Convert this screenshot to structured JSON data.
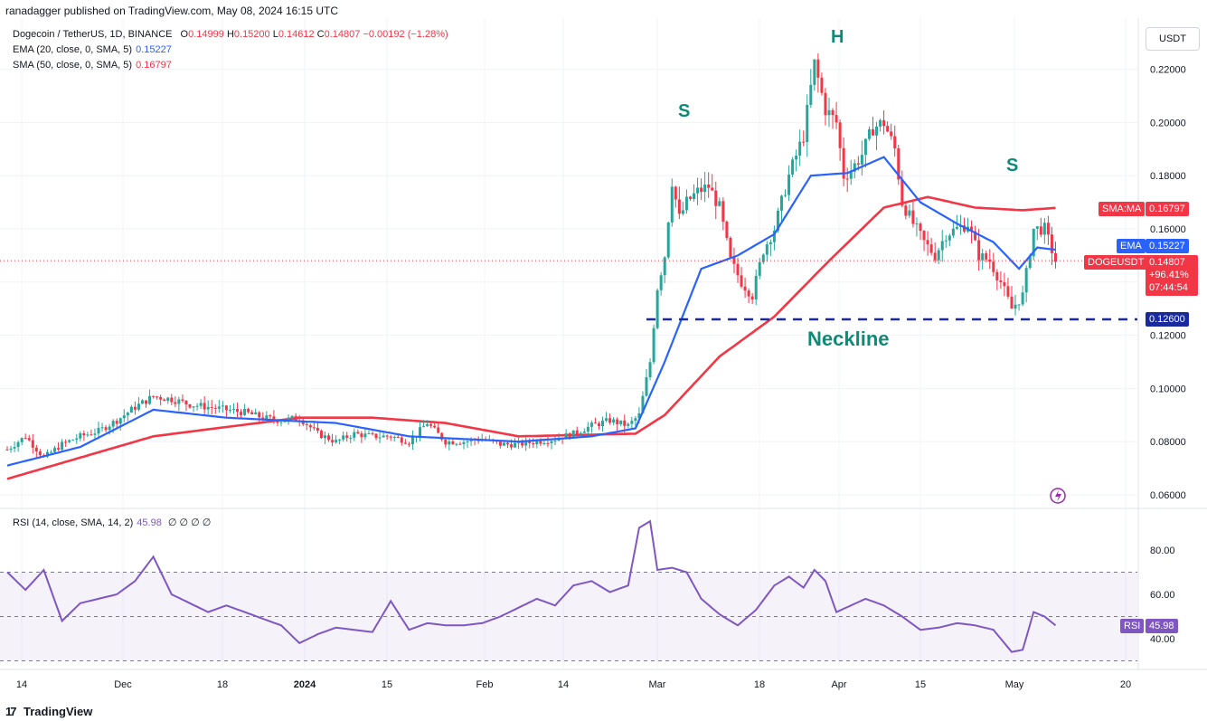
{
  "publisher_line": "ranadagger published on TradingView.com, May 08, 2024 16:15 UTC",
  "header": {
    "symbol": "Dogecoin / TetherUS, 1D, BINANCE",
    "o_key": "O",
    "o_val": "0.14999",
    "h_key": "H",
    "h_val": "0.15200",
    "l_key": "L",
    "l_val": "0.14612",
    "c_key": "C",
    "c_val": "0.14807",
    "change": "−0.00192 (−1.28%)",
    "ema_label": "EMA (20, close, 0, SMA, 5)",
    "ema_value": "0.15227",
    "sma_label": "SMA (50, close, 0, SMA, 5)",
    "sma_value": "0.16797",
    "rsi_label": "RSI (14, close, SMA, 14, 2)",
    "rsi_value": "45.98",
    "rsi_extra": "∅ ∅ ∅ ∅"
  },
  "currency_button": "USDT",
  "tags": {
    "sma": {
      "label": "SMA:MA",
      "value": "0.16797"
    },
    "ema": {
      "label": "EMA",
      "value": "0.15227"
    },
    "price": {
      "label": "DOGEUSDT",
      "value": "0.14807",
      "change": "+96.41%",
      "countdown": "07:44:54"
    },
    "neckline": "0.12600",
    "rsi": {
      "label": "RSI",
      "value": "45.98"
    }
  },
  "annotations": {
    "left_shoulder": "S",
    "head": "H",
    "right_shoulder": "S",
    "neckline": "Neckline"
  },
  "branding": "TradingView",
  "colors": {
    "up": "#26a69a",
    "down": "#f23645",
    "ema": "#2962ff",
    "sma": "#f23645",
    "rsi": "#7e57c2",
    "neckline": "#1a2a9c"
  },
  "chart_data": {
    "type": "candlestick",
    "title": "Dogecoin / TetherUS, 1D, BINANCE",
    "price_axis": {
      "ticks": [
        "0.22000",
        "0.20000",
        "0.18000",
        "0.16000",
        "0.14000",
        "0.12000",
        "0.10000",
        "0.08000",
        "0.06000"
      ],
      "range": [
        0.053,
        0.232
      ]
    },
    "time_axis": {
      "ticks": [
        "14",
        "Dec",
        "18",
        "2024",
        "15",
        "Feb",
        "14",
        "Mar",
        "18",
        "Apr",
        "15",
        "May",
        "20"
      ]
    },
    "rsi_axis": {
      "ticks": [
        "80.00",
        "60.00",
        "40.00"
      ],
      "range": [
        28,
        95
      ],
      "upper_band": 70,
      "middle": 50,
      "lower_band": 30
    },
    "neckline_level": 0.126,
    "close_anchors": [
      [
        0,
        0.077
      ],
      [
        5,
        0.082
      ],
      [
        10,
        0.074
      ],
      [
        15,
        0.079
      ],
      [
        20,
        0.082
      ],
      [
        25,
        0.084
      ],
      [
        30,
        0.088
      ],
      [
        35,
        0.093
      ],
      [
        40,
        0.097
      ],
      [
        45,
        0.096
      ],
      [
        50,
        0.094
      ],
      [
        55,
        0.093
      ],
      [
        60,
        0.092
      ],
      [
        65,
        0.091
      ],
      [
        70,
        0.089
      ],
      [
        75,
        0.088
      ],
      [
        80,
        0.089
      ],
      [
        85,
        0.083
      ],
      [
        90,
        0.08
      ],
      [
        95,
        0.083
      ],
      [
        100,
        0.082
      ],
      [
        105,
        0.082
      ],
      [
        110,
        0.08
      ],
      [
        115,
        0.087
      ],
      [
        120,
        0.08
      ],
      [
        125,
        0.08
      ],
      [
        130,
        0.081
      ],
      [
        135,
        0.079
      ],
      [
        140,
        0.079
      ],
      [
        145,
        0.08
      ],
      [
        150,
        0.081
      ],
      [
        155,
        0.083
      ],
      [
        160,
        0.086
      ],
      [
        165,
        0.088
      ],
      [
        170,
        0.086
      ],
      [
        173,
        0.09
      ],
      [
        176,
        0.11
      ],
      [
        178,
        0.138
      ],
      [
        180,
        0.15
      ],
      [
        182,
        0.178
      ],
      [
        184,
        0.164
      ],
      [
        186,
        0.17
      ],
      [
        189,
        0.174
      ],
      [
        192,
        0.176
      ],
      [
        195,
        0.168
      ],
      [
        198,
        0.148
      ],
      [
        201,
        0.14
      ],
      [
        204,
        0.135
      ],
      [
        207,
        0.152
      ],
      [
        210,
        0.16
      ],
      [
        214,
        0.18
      ],
      [
        218,
        0.195
      ],
      [
        221,
        0.222
      ],
      [
        224,
        0.205
      ],
      [
        227,
        0.2
      ],
      [
        229,
        0.18
      ],
      [
        231,
        0.182
      ],
      [
        234,
        0.188
      ],
      [
        237,
        0.198
      ],
      [
        240,
        0.2
      ],
      [
        243,
        0.19
      ],
      [
        245,
        0.17
      ],
      [
        248,
        0.162
      ],
      [
        251,
        0.155
      ],
      [
        254,
        0.15
      ],
      [
        257,
        0.158
      ],
      [
        260,
        0.16
      ],
      [
        263,
        0.162
      ],
      [
        266,
        0.15
      ],
      [
        269,
        0.148
      ],
      [
        272,
        0.14
      ],
      [
        275,
        0.13
      ],
      [
        278,
        0.135
      ],
      [
        281,
        0.16
      ],
      [
        284,
        0.16
      ],
      [
        287,
        0.148
      ]
    ],
    "ema_anchors": [
      [
        0,
        0.071
      ],
      [
        20,
        0.078
      ],
      [
        40,
        0.092
      ],
      [
        60,
        0.089
      ],
      [
        90,
        0.087
      ],
      [
        110,
        0.082
      ],
      [
        140,
        0.08
      ],
      [
        160,
        0.082
      ],
      [
        172,
        0.085
      ],
      [
        180,
        0.11
      ],
      [
        190,
        0.145
      ],
      [
        200,
        0.15
      ],
      [
        210,
        0.158
      ],
      [
        220,
        0.18
      ],
      [
        230,
        0.181
      ],
      [
        240,
        0.187
      ],
      [
        250,
        0.17
      ],
      [
        260,
        0.162
      ],
      [
        270,
        0.155
      ],
      [
        277,
        0.145
      ],
      [
        282,
        0.153
      ],
      [
        288,
        0.152
      ]
    ],
    "sma_anchors": [
      [
        0,
        0.066
      ],
      [
        40,
        0.082
      ],
      [
        80,
        0.089
      ],
      [
        100,
        0.089
      ],
      [
        120,
        0.087
      ],
      [
        140,
        0.082
      ],
      [
        172,
        0.083
      ],
      [
        180,
        0.09
      ],
      [
        195,
        0.112
      ],
      [
        210,
        0.127
      ],
      [
        225,
        0.148
      ],
      [
        240,
        0.168
      ],
      [
        252,
        0.172
      ],
      [
        265,
        0.168
      ],
      [
        278,
        0.167
      ],
      [
        288,
        0.168
      ]
    ],
    "rsi_anchors": [
      [
        0,
        70
      ],
      [
        5,
        62
      ],
      [
        10,
        71
      ],
      [
        15,
        48
      ],
      [
        20,
        56
      ],
      [
        25,
        58
      ],
      [
        30,
        60
      ],
      [
        35,
        66
      ],
      [
        40,
        77
      ],
      [
        45,
        60
      ],
      [
        50,
        56
      ],
      [
        55,
        52
      ],
      [
        60,
        55
      ],
      [
        65,
        52
      ],
      [
        70,
        49
      ],
      [
        75,
        46
      ],
      [
        80,
        38
      ],
      [
        85,
        42
      ],
      [
        90,
        45
      ],
      [
        95,
        44
      ],
      [
        100,
        43
      ],
      [
        105,
        57
      ],
      [
        110,
        44
      ],
      [
        115,
        47
      ],
      [
        120,
        46
      ],
      [
        125,
        46
      ],
      [
        130,
        47
      ],
      [
        135,
        50
      ],
      [
        140,
        54
      ],
      [
        145,
        58
      ],
      [
        150,
        55
      ],
      [
        155,
        64
      ],
      [
        160,
        66
      ],
      [
        165,
        61
      ],
      [
        170,
        64
      ],
      [
        173,
        90
      ],
      [
        176,
        93
      ],
      [
        178,
        71
      ],
      [
        182,
        72
      ],
      [
        186,
        70
      ],
      [
        190,
        58
      ],
      [
        195,
        51
      ],
      [
        200,
        46
      ],
      [
        205,
        53
      ],
      [
        210,
        64
      ],
      [
        214,
        68
      ],
      [
        218,
        63
      ],
      [
        221,
        71
      ],
      [
        224,
        66
      ],
      [
        227,
        52
      ],
      [
        231,
        55
      ],
      [
        235,
        58
      ],
      [
        240,
        55
      ],
      [
        245,
        50
      ],
      [
        250,
        44
      ],
      [
        255,
        45
      ],
      [
        260,
        47
      ],
      [
        265,
        46
      ],
      [
        270,
        44
      ],
      [
        275,
        34
      ],
      [
        278,
        35
      ],
      [
        281,
        52
      ],
      [
        284,
        50
      ],
      [
        287,
        46
      ]
    ],
    "last_price": 0.14807
  }
}
